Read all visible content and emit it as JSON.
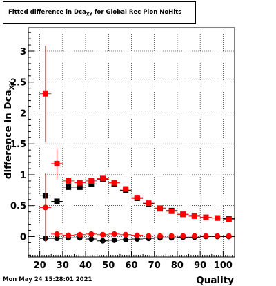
{
  "chart_data": {
    "type": "scatter",
    "title_main": "Fitted difference in Dca",
    "title_sub": "XY",
    "title_tail": " for Global Rec Pion NoHits",
    "xlabel": "Quality",
    "ylabel_main": "difference in Dca",
    "ylabel_sub": "XY",
    "xlim": [
      15,
      105
    ],
    "ylim": [
      -0.33,
      3.38
    ],
    "xticks": [
      20,
      30,
      40,
      50,
      60,
      70,
      80,
      90,
      100
    ],
    "yticks": [
      0,
      0.5,
      1,
      1.5,
      2,
      2.5,
      3
    ],
    "ytick_labels": [
      "0",
      "0.5",
      "1",
      "1.5",
      "2",
      "2.5",
      "3"
    ],
    "grid": true,
    "series": [
      {
        "marker": "square",
        "color": "#000000",
        "x": [
          22.5,
          27.5,
          32.5,
          37.5,
          42.5,
          47.5,
          52.5,
          57.5,
          62.5,
          67.5,
          72.5,
          77.5,
          82.5,
          87.5,
          92.5,
          97.5,
          102.5
        ],
        "y": [
          0.66,
          0.57,
          0.8,
          0.8,
          0.85,
          0.93,
          0.85,
          0.75,
          0.62,
          0.53,
          0.45,
          0.42,
          0.36,
          0.34,
          0.31,
          0.3,
          0.29
        ],
        "err": [
          0.05,
          0.04,
          0.03,
          0.03,
          0.03,
          0.02,
          0.02,
          0.02,
          0.02,
          0.02,
          0.02,
          0.02,
          0.02,
          0.02,
          0.02,
          0.02,
          0.02
        ]
      },
      {
        "marker": "square",
        "color": "#ff0000",
        "x": [
          22.5,
          27.5,
          32.5,
          37.5,
          42.5,
          47.5,
          52.5,
          57.5,
          62.5,
          67.5,
          72.5,
          77.5,
          82.5,
          87.5,
          92.5,
          97.5,
          102.5
        ],
        "y": [
          2.31,
          1.18,
          0.9,
          0.87,
          0.9,
          0.94,
          0.87,
          0.77,
          0.63,
          0.54,
          0.46,
          0.41,
          0.36,
          0.33,
          0.31,
          0.3,
          0.28
        ],
        "err": [
          0.78,
          0.25,
          0.05,
          0.04,
          0.03,
          0.03,
          0.02,
          0.02,
          0.02,
          0.02,
          0.02,
          0.02,
          0.02,
          0.02,
          0.02,
          0.02,
          0.02
        ]
      },
      {
        "marker": "circle",
        "color": "#000000",
        "x": [
          22.5,
          27.5,
          32.5,
          37.5,
          42.5,
          47.5,
          52.5,
          57.5,
          62.5,
          67.5,
          72.5,
          77.5,
          82.5,
          87.5,
          92.5,
          97.5,
          102.5
        ],
        "y": [
          -0.03,
          -0.03,
          -0.02,
          -0.02,
          -0.04,
          -0.07,
          -0.06,
          -0.05,
          -0.04,
          -0.03,
          -0.02,
          -0.02,
          -0.01,
          -0.01,
          0.0,
          0.0,
          0.0
        ],
        "err": [
          0.05,
          0.03,
          0.02,
          0.02,
          0.02,
          0.02,
          0.02,
          0.02,
          0.02,
          0.02,
          0.02,
          0.02,
          0.02,
          0.02,
          0.02,
          0.02,
          0.02
        ]
      },
      {
        "marker": "circle",
        "color": "#ff0000",
        "x": [
          22.5,
          27.5,
          32.5,
          37.5,
          42.5,
          47.5,
          52.5,
          57.5,
          62.5,
          67.5,
          72.5,
          77.5,
          82.5,
          87.5,
          92.5,
          97.5,
          102.5
        ],
        "y": [
          0.47,
          0.04,
          0.02,
          0.03,
          0.04,
          0.03,
          0.04,
          0.03,
          0.02,
          0.01,
          0.01,
          0.01,
          0.01,
          0.01,
          0.01,
          0.01,
          0.01
        ],
        "err": [
          0.55,
          0.05,
          0.03,
          0.02,
          0.02,
          0.02,
          0.02,
          0.02,
          0.02,
          0.02,
          0.02,
          0.02,
          0.02,
          0.02,
          0.02,
          0.02,
          0.02
        ]
      }
    ]
  },
  "footer": {
    "timestamp": "Mon May 24 15:28:01 2021"
  }
}
